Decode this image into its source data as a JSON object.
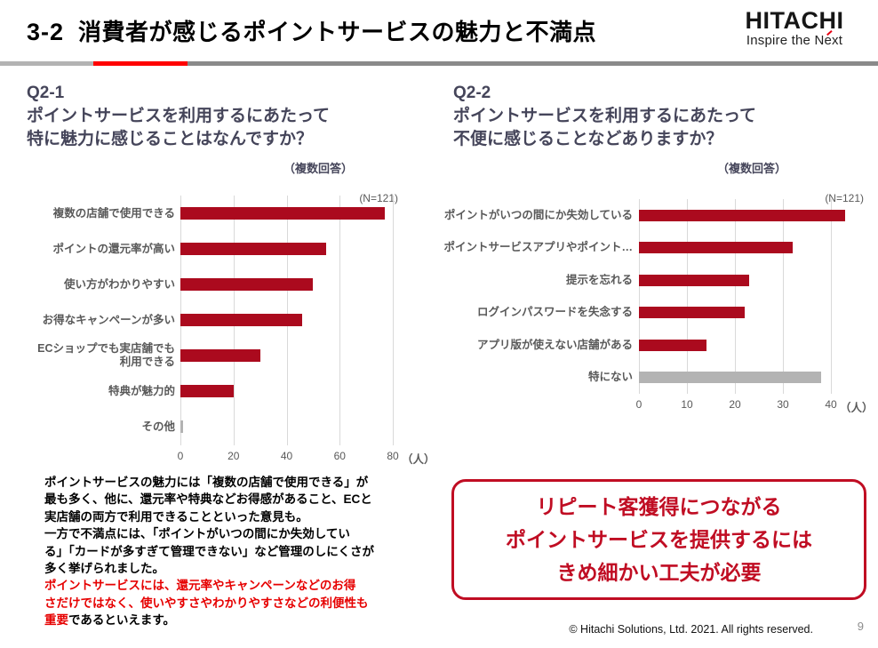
{
  "header": {
    "section_number": "3-2",
    "title": "消費者が感じるポイントサービスの魅力と不満点",
    "logo_name": "HITACHI",
    "logo_tagline": "Inspire the Next"
  },
  "colors": {
    "bar_red": "#ab0a1e",
    "bar_gray": "#b3b3b3",
    "rule_light_gray": "#b3b3b3",
    "rule_red": "#ff0000",
    "rule_gray": "#8a8a8a",
    "heading_slate": "#45455a",
    "callout_red": "#c00d23",
    "summary_red": "#e60000",
    "gridline_gray": "#d9d9d9"
  },
  "questions": {
    "q1": {
      "code": "Q2-1",
      "line1": "ポイントサービスを利用するにあたって",
      "line2": "特に魅力に感じることはなんですか？",
      "note": "（複数回答）",
      "n_label": "(N=121)"
    },
    "q2": {
      "code": "Q2-2",
      "line1": "ポイントサービスを利用するにあたって",
      "line2": "不便に感じることなどありますか？",
      "note": "（複数回答）",
      "n_label": "(N=121)"
    }
  },
  "chart_data": [
    {
      "type": "bar",
      "orientation": "horizontal",
      "title": "Q2-1 ポイントサービスを利用するにあたって特に魅力に感じることはなんですか？（複数回答）",
      "n": "(N=121)",
      "categories": [
        "複数の店舗で使用できる",
        "ポイントの還元率が高い",
        "使い方がわかりやすい",
        "お得なキャンペーンが多い",
        "ECショップでも実店舗でも\n利用できる",
        "特典が魅力的",
        "その他"
      ],
      "values": [
        77,
        55,
        50,
        46,
        30,
        20,
        1
      ],
      "bar_colors": [
        "#ab0a1e",
        "#ab0a1e",
        "#ab0a1e",
        "#ab0a1e",
        "#ab0a1e",
        "#ab0a1e",
        "#b3b3b3"
      ],
      "x_ticks": [
        0,
        20,
        40,
        60,
        80
      ],
      "xlim": [
        0,
        80
      ],
      "xlabel": "（人）",
      "grid": true,
      "legend": false
    },
    {
      "type": "bar",
      "orientation": "horizontal",
      "title": "Q2-2 ポイントサービスを利用するにあたって不便に感じることなどありますか？（複数回答）",
      "n": "(N=121)",
      "categories": [
        "ポイントがいつの間にか失効している",
        "ポイントサービスアプリやポイント…",
        "提示を忘れる",
        "ログインパスワードを失念する",
        "アプリ版が使えない店舗がある",
        "特にない"
      ],
      "values": [
        43,
        32,
        23,
        22,
        14,
        38
      ],
      "bar_colors": [
        "#ab0a1e",
        "#ab0a1e",
        "#ab0a1e",
        "#ab0a1e",
        "#ab0a1e",
        "#b3b3b3"
      ],
      "x_ticks": [
        0,
        10,
        20,
        30,
        40
      ],
      "xlim": [
        0,
        40
      ],
      "xlabel": "（人）",
      "grid": true,
      "legend": false
    }
  ],
  "summary": {
    "segments": [
      {
        "color": "black",
        "text": "ポイントサービスの魅力には「複数の店舗で使用できる」が\n最も多く、他に、還元率や特典などお得感があること、ECと\n実店舗の両方で利用できることといった意見も。\n一方で不満点には、「ポイントがいつの間にか失効してい\nる」「カードが多すぎて管理できない」など管理のしにくさが\n多く挙げられました。\n"
      },
      {
        "color": "red",
        "text": "ポイントサービスには、還元率やキャンペーンなどのお得\nさだけではなく、使いやすさやわかりやすさなどの利便性も\n重要"
      },
      {
        "color": "black",
        "text": "であるといえます。"
      }
    ]
  },
  "callout": {
    "lines": [
      "リピート客獲得につながる",
      "ポイントサービスを提供するには",
      "きめ細かい工夫が必要"
    ]
  },
  "footer": {
    "copyright": "© Hitachi Solutions, Ltd. 2021. All rights reserved.",
    "page": "9"
  }
}
